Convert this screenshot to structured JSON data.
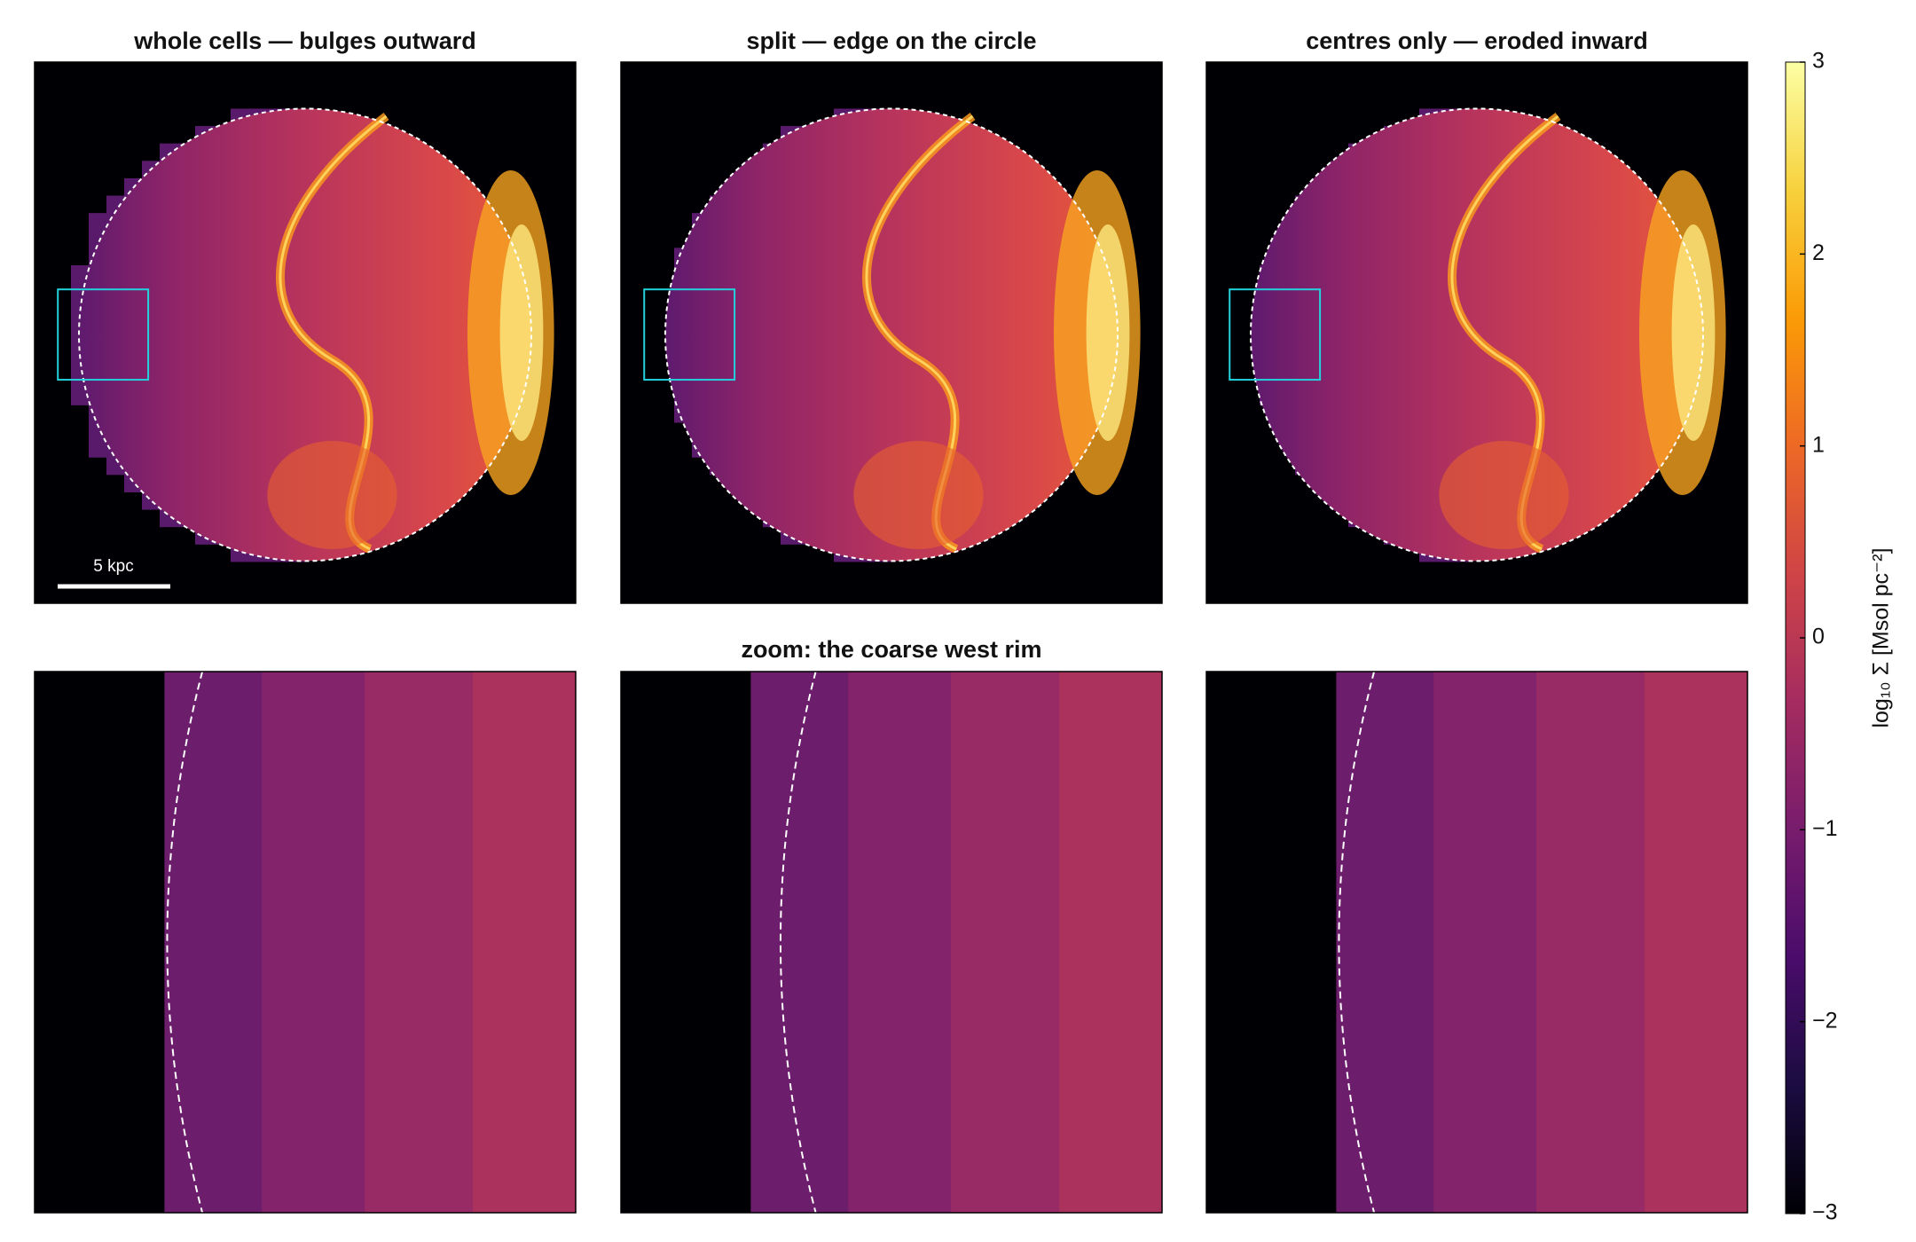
{
  "chart_data": {
    "type": "heatmap",
    "titles": [
      "whole cells — bulges outward",
      "split — edge on the circle",
      "centres only — eroded inward"
    ],
    "zoom_title": "zoom: the coarse west rim",
    "scale_bar": "5 kpc",
    "colormap": "inferno",
    "colorbar": {
      "label": "log₁₀ Σ  [Msol pc⁻²]",
      "zlim": [
        -3,
        3
      ],
      "ticks": [
        {
          "value": -3,
          "label": "−3"
        },
        {
          "value": -2,
          "label": "−2"
        },
        {
          "value": -1,
          "label": "−1"
        },
        0,
        1,
        2,
        3
      ]
    }
  }
}
